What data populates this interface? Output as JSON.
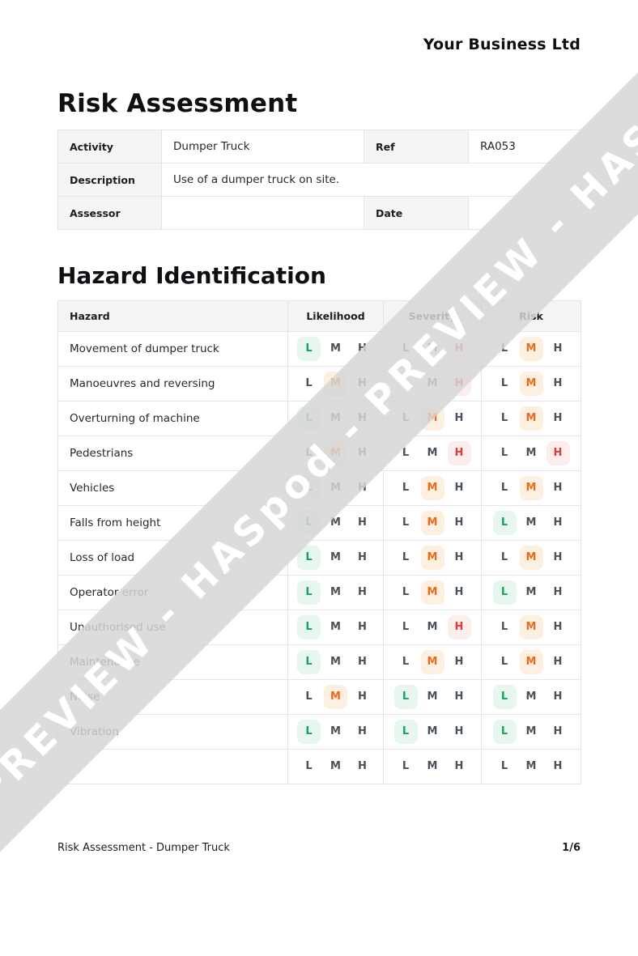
{
  "page": {
    "company": "Your Business Ltd",
    "title": "Risk Assessment",
    "section_title": "Hazard Identification",
    "footer_left": "Risk Assessment - Dumper Truck",
    "footer_right": "1/6"
  },
  "details": {
    "activity_label": "Activity",
    "activity_value": "Dumper Truck",
    "ref_label": "Ref",
    "ref_value": "RA053",
    "description_label": "Description",
    "description_value": "Use of a dumper truck on site.",
    "assessor_label": "Assessor",
    "assessor_value": "",
    "date_label": "Date",
    "date_value": ""
  },
  "hazard_table": {
    "headers": [
      "Hazard",
      "Likelihood",
      "Severity",
      "Risk"
    ],
    "levels": [
      "L",
      "M",
      "H"
    ],
    "rows": [
      {
        "hazard": "Movement of dumper truck",
        "likelihood": "L",
        "severity": "H",
        "risk": "M"
      },
      {
        "hazard": "Manoeuvres and reversing",
        "likelihood": "M",
        "severity": "H",
        "risk": "M"
      },
      {
        "hazard": "Overturning of machine",
        "likelihood": "L",
        "severity": "M",
        "risk": "M"
      },
      {
        "hazard": "Pedestrians",
        "likelihood": "M",
        "severity": "H",
        "risk": "H"
      },
      {
        "hazard": "Vehicles",
        "likelihood": "L",
        "severity": "M",
        "risk": "M"
      },
      {
        "hazard": "Falls from height",
        "likelihood": "L",
        "severity": "M",
        "risk": "L"
      },
      {
        "hazard": "Loss of load",
        "likelihood": "L",
        "severity": "M",
        "risk": "M"
      },
      {
        "hazard": "Operator error",
        "likelihood": "L",
        "severity": "M",
        "risk": "L"
      },
      {
        "hazard": "Unauthorised use",
        "likelihood": "L",
        "severity": "H",
        "risk": "M"
      },
      {
        "hazard": "Maintenance",
        "likelihood": "L",
        "severity": "M",
        "risk": "M"
      },
      {
        "hazard": "Noise",
        "likelihood": "M",
        "severity": "L",
        "risk": "L"
      },
      {
        "hazard": "Vibration",
        "likelihood": "L",
        "severity": "L",
        "risk": "L"
      },
      {
        "hazard": "",
        "likelihood": "",
        "severity": "",
        "risk": ""
      }
    ]
  },
  "watermark": {
    "text": "Pod - PREVIEW - HASpod - PREVIEW - HASpod - PREVIEW - HASpod"
  },
  "colors": {
    "low_text": "#17a35f",
    "low_bg": "#e7f7ee",
    "medium_text": "#ed6a1b",
    "medium_bg": "#fdf0e1",
    "high_text": "#e23b3b",
    "high_bg": "#fdeeee",
    "header_bg": "#f5f5f6",
    "border": "#e3e5e7",
    "watermark_band": "#d5d5d5",
    "watermark_text": "#ffffff"
  }
}
